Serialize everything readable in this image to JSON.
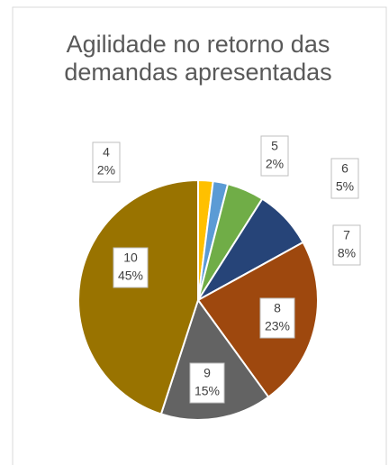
{
  "chart_data": {
    "type": "pie",
    "title": "Agilidade no retorno das demandas apresentadas",
    "categories": [
      "4",
      "5",
      "6",
      "7",
      "8",
      "9",
      "10"
    ],
    "values": [
      2,
      2,
      5,
      8,
      23,
      15,
      45
    ],
    "value_labels": [
      "2%",
      "2%",
      "5%",
      "8%",
      "23%",
      "15%",
      "45%"
    ],
    "colors": [
      "#ffc000",
      "#5b9bd5",
      "#70ad47",
      "#264478",
      "#9e480e",
      "#636363",
      "#997300"
    ]
  }
}
